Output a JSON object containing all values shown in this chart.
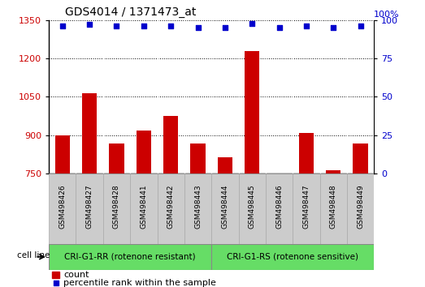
{
  "title": "GDS4014 / 1371473_at",
  "samples": [
    "GSM498426",
    "GSM498427",
    "GSM498428",
    "GSM498441",
    "GSM498442",
    "GSM498443",
    "GSM498444",
    "GSM498445",
    "GSM498446",
    "GSM498447",
    "GSM498448",
    "GSM498449"
  ],
  "counts": [
    900,
    1063,
    867,
    918,
    975,
    868,
    815,
    1228,
    750,
    908,
    762,
    868
  ],
  "percentiles": [
    96,
    97,
    96,
    96,
    96,
    95,
    95,
    98,
    95,
    96,
    95,
    96
  ],
  "group1_label": "CRI-G1-RR (rotenone resistant)",
  "group2_label": "CRI-G1-RS (rotenone sensitive)",
  "group1_count": 6,
  "group2_count": 6,
  "ylim_left": [
    750,
    1350
  ],
  "ylim_right": [
    0,
    100
  ],
  "yticks_left": [
    750,
    900,
    1050,
    1200,
    1350
  ],
  "yticks_right": [
    0,
    25,
    50,
    75,
    100
  ],
  "bar_color": "#cc0000",
  "dot_color": "#0000cc",
  "group_color": "#66dd66",
  "sample_bg_color": "#cccccc",
  "plot_bg_color": "#ffffff",
  "legend_count_label": "count",
  "legend_pct_label": "percentile rank within the sample",
  "cell_line_label": "cell line",
  "right_yaxis_top_label": "100%"
}
